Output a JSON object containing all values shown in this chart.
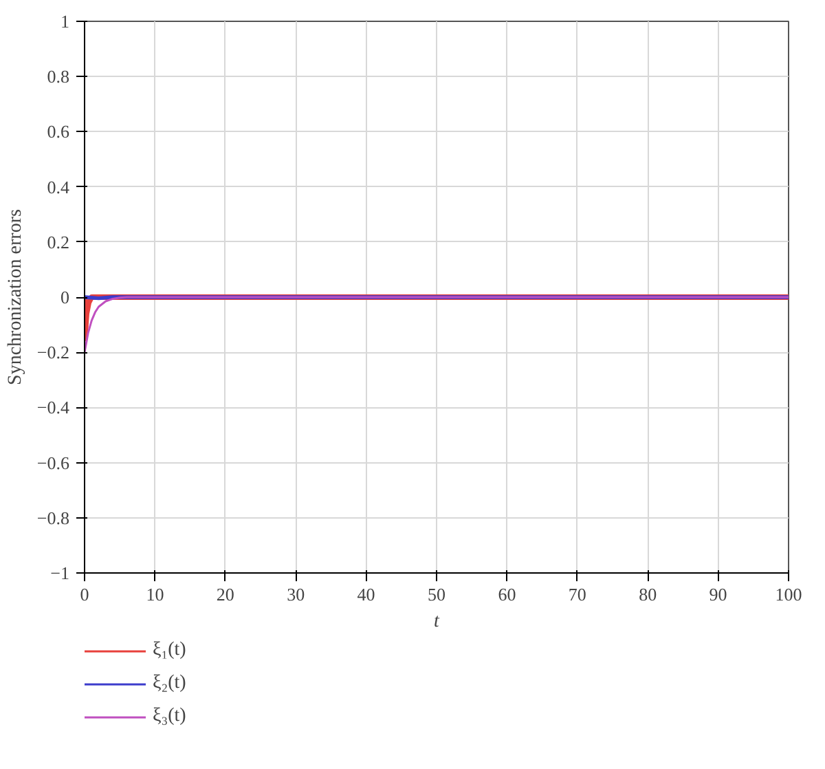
{
  "chart_data": {
    "type": "line",
    "xlabel": "t",
    "ylabel": "Synchronization errors",
    "xlim": [
      0,
      100
    ],
    "ylim": [
      -1,
      1
    ],
    "xticks": [
      0,
      10,
      20,
      30,
      40,
      50,
      60,
      70,
      80,
      90,
      100
    ],
    "yticks": [
      -1,
      -0.8,
      -0.6,
      -0.4,
      -0.2,
      0,
      0.2,
      0.4,
      0.6,
      0.8,
      1
    ],
    "grid": true,
    "legend": "bottom left",
    "series": [
      {
        "name": "ξ₁(t)",
        "color": "#e8403c",
        "x": [
          0,
          0.05,
          0.3,
          0.6,
          1,
          100
        ],
        "values": [
          0,
          -0.15,
          -0.06,
          -0.02,
          0,
          0
        ]
      },
      {
        "name": "ξ₂(t)",
        "color": "#3c3ccc",
        "x": [
          0,
          1,
          2,
          3,
          4,
          100
        ],
        "values": [
          0,
          -0.002,
          -0.004,
          -0.002,
          0,
          0
        ]
      },
      {
        "name": "ξ₃(t)",
        "color": "#c050c0",
        "x": [
          0,
          0.5,
          1,
          1.5,
          2,
          3,
          4,
          5,
          6,
          100
        ],
        "values": [
          -0.2,
          -0.13,
          -0.085,
          -0.055,
          -0.035,
          -0.015,
          -0.006,
          -0.002,
          0,
          0
        ]
      }
    ]
  }
}
